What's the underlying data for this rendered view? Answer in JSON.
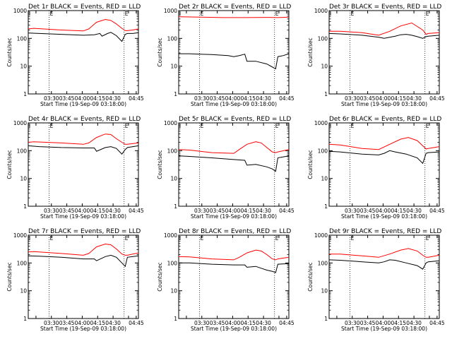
{
  "chart_data": [
    {
      "type": "line",
      "title": "Det 1r BLACK = Events, RED = LLD",
      "xlabel": "Start Time (19-Sep-09 03:18:00)",
      "ylabel": "Counts/sec",
      "xticklabels": [
        "03:30",
        "03:45",
        "04:00",
        "04:15",
        "04:30",
        "04:45"
      ],
      "yticklabels": [
        "1",
        "10",
        "100",
        "1000"
      ],
      "ylim": [
        1,
        1000
      ],
      "yscale": "log",
      "markers": [
        "E",
        "E"
      ],
      "series": [
        {
          "color": "#000000",
          "x": [
            0,
            0.1,
            0.3,
            0.5,
            0.6,
            0.65,
            0.67,
            0.72,
            0.75,
            0.8,
            0.85,
            0.88,
            0.9,
            0.95,
            1
          ],
          "y": [
            155,
            150,
            140,
            130,
            135,
            150,
            120,
            150,
            165,
            125,
            78,
            140,
            150,
            150,
            160
          ]
        },
        {
          "color": "#ff0000",
          "x": [
            0,
            0.05,
            0.3,
            0.5,
            0.55,
            0.62,
            0.7,
            0.75,
            0.8,
            0.85,
            0.88,
            0.9,
            0.95,
            1
          ],
          "y": [
            220,
            230,
            200,
            185,
            220,
            380,
            480,
            440,
            330,
            230,
            190,
            190,
            200,
            220
          ]
        }
      ]
    },
    {
      "type": "line",
      "title": "Det 2r BLACK = Events, RED = LLD",
      "xlabel": "Start Time (19-Sep-09 03:18:00)",
      "ylabel": "Counts/sec",
      "xticklabels": [
        "03:30",
        "03:45",
        "04:00",
        "04:15",
        "04:30",
        "04:45"
      ],
      "yticklabels": [
        "1",
        "10",
        "100",
        "1000"
      ],
      "ylim": [
        1,
        1000
      ],
      "yscale": "log",
      "markers": [
        "E",
        "E"
      ],
      "series": [
        {
          "color": "#000000",
          "x": [
            0,
            0.1,
            0.2,
            0.3,
            0.45,
            0.5,
            0.55,
            0.6,
            0.62,
            0.7,
            0.8,
            0.88,
            0.9,
            0.95,
            1
          ],
          "y": [
            28,
            28,
            27,
            26,
            24,
            22,
            24,
            27,
            15,
            15,
            12,
            8,
            22,
            24,
            28
          ]
        },
        {
          "color": "#ff0000",
          "x": [
            0,
            0.2,
            0.4,
            0.6,
            0.8,
            0.9,
            1
          ],
          "y": [
            600,
            580,
            560,
            560,
            570,
            560,
            580
          ]
        }
      ]
    },
    {
      "type": "line",
      "title": "Det 3r BLACK = Events, RED = LLD",
      "xlabel": "Start Time (19-Sep-09 03:18:00)",
      "ylabel": "Counts/sec",
      "xticklabels": [
        "03:30",
        "03:45",
        "04:00",
        "04:15",
        "04:30",
        "04:45"
      ],
      "yticklabels": [
        "1",
        "10",
        "100",
        "1000"
      ],
      "ylim": [
        1,
        1000
      ],
      "yscale": "log",
      "markers": [
        "E",
        "E"
      ],
      "series": [
        {
          "color": "#000000",
          "x": [
            0,
            0.1,
            0.3,
            0.45,
            0.5,
            0.55,
            0.6,
            0.65,
            0.7,
            0.75,
            0.8,
            0.85,
            0.88,
            0.9,
            1
          ],
          "y": [
            150,
            145,
            130,
            110,
            100,
            110,
            120,
            135,
            140,
            130,
            115,
            100,
            115,
            120,
            130
          ]
        },
        {
          "color": "#ff0000",
          "x": [
            0,
            0.1,
            0.3,
            0.45,
            0.55,
            0.65,
            0.75,
            0.85,
            0.88,
            0.9,
            1
          ],
          "y": [
            180,
            180,
            160,
            130,
            180,
            280,
            360,
            200,
            140,
            150,
            160
          ]
        }
      ]
    },
    {
      "type": "line",
      "title": "Det 4r BLACK = Events, RED = LLD",
      "xlabel": "Start Time (19-Sep-09 03:18:00)",
      "ylabel": "Counts/sec",
      "xticklabels": [
        "03:30",
        "03:45",
        "04:00",
        "04:15",
        "04:30",
        "04:45"
      ],
      "yticklabels": [
        "1",
        "10",
        "100",
        "1000"
      ],
      "ylim": [
        1,
        1000
      ],
      "yscale": "log",
      "markers": [
        "E",
        "E"
      ],
      "series": [
        {
          "color": "#000000",
          "x": [
            0,
            0.1,
            0.3,
            0.5,
            0.6,
            0.62,
            0.7,
            0.75,
            0.8,
            0.85,
            0.88,
            0.9,
            0.95,
            1
          ],
          "y": [
            150,
            140,
            130,
            125,
            125,
            95,
            130,
            140,
            120,
            75,
            110,
            130,
            140,
            150
          ]
        },
        {
          "color": "#ff0000",
          "x": [
            0,
            0.05,
            0.3,
            0.5,
            0.55,
            0.62,
            0.7,
            0.75,
            0.8,
            0.85,
            0.88,
            0.9,
            1
          ],
          "y": [
            200,
            210,
            190,
            170,
            190,
            300,
            400,
            380,
            270,
            200,
            170,
            170,
            190
          ]
        }
      ]
    },
    {
      "type": "line",
      "title": "Det 5r BLACK = Events, RED = LLD",
      "xlabel": "Start Time (19-Sep-09 03:18:00)",
      "ylabel": "Counts/sec",
      "xticklabels": [
        "03:30",
        "03:45",
        "04:00",
        "04:15",
        "04:30",
        "04:45"
      ],
      "yticklabels": [
        "1",
        "10",
        "100",
        "1000"
      ],
      "ylim": [
        1,
        1000
      ],
      "yscale": "log",
      "markers": [
        "E",
        "E"
      ],
      "series": [
        {
          "color": "#000000",
          "x": [
            0,
            0.1,
            0.3,
            0.5,
            0.6,
            0.62,
            0.7,
            0.8,
            0.85,
            0.88,
            0.9,
            0.95,
            1
          ],
          "y": [
            65,
            62,
            55,
            48,
            45,
            30,
            32,
            26,
            22,
            18,
            55,
            60,
            65
          ]
        },
        {
          "color": "#ff0000",
          "x": [
            0,
            0.1,
            0.3,
            0.5,
            0.55,
            0.62,
            0.7,
            0.75,
            0.8,
            0.85,
            0.88,
            0.9,
            1
          ],
          "y": [
            110,
            105,
            85,
            80,
            110,
            170,
            210,
            190,
            130,
            90,
            85,
            90,
            110
          ]
        }
      ]
    },
    {
      "type": "line",
      "title": "Det 6r BLACK = Events, RED = LLD",
      "xlabel": "Start Time (19-Sep-09 03:18:00)",
      "ylabel": "Counts/sec",
      "xticklabels": [
        "03:30",
        "03:45",
        "04:00",
        "04:15",
        "04:30",
        "04:45"
      ],
      "yticklabels": [
        "1",
        "10",
        "100",
        "1000"
      ],
      "ylim": [
        1,
        1000
      ],
      "yscale": "log",
      "markers": [
        "E",
        "E"
      ],
      "series": [
        {
          "color": "#000000",
          "x": [
            0,
            0.1,
            0.3,
            0.45,
            0.5,
            0.55,
            0.6,
            0.7,
            0.8,
            0.85,
            0.88,
            0.9,
            1
          ],
          "y": [
            95,
            90,
            75,
            70,
            80,
            100,
            90,
            75,
            55,
            35,
            80,
            85,
            90
          ]
        },
        {
          "color": "#ff0000",
          "x": [
            0,
            0.1,
            0.3,
            0.45,
            0.55,
            0.65,
            0.72,
            0.8,
            0.85,
            0.88,
            0.9,
            1
          ],
          "y": [
            170,
            160,
            120,
            110,
            170,
            260,
            300,
            230,
            150,
            115,
            120,
            140
          ]
        }
      ]
    },
    {
      "type": "line",
      "title": "Det 7r BLACK = Events, RED = LLD",
      "xlabel": "Start Time (19-Sep-09 03:18:00)",
      "ylabel": "Counts/sec",
      "xticklabels": [
        "03:30",
        "03:45",
        "04:00",
        "04:15",
        "04:30",
        "04:45"
      ],
      "yticklabels": [
        "1",
        "10",
        "100",
        "1000"
      ],
      "ylim": [
        1,
        1000
      ],
      "yscale": "log",
      "markers": [
        "E",
        "E"
      ],
      "series": [
        {
          "color": "#000000",
          "x": [
            0,
            0.1,
            0.3,
            0.5,
            0.6,
            0.62,
            0.7,
            0.75,
            0.8,
            0.85,
            0.88,
            0.9,
            0.95,
            1
          ],
          "y": [
            180,
            175,
            160,
            140,
            140,
            120,
            170,
            190,
            160,
            100,
            75,
            160,
            170,
            180
          ]
        },
        {
          "color": "#ff0000",
          "x": [
            0,
            0.05,
            0.3,
            0.5,
            0.55,
            0.62,
            0.7,
            0.75,
            0.8,
            0.85,
            0.88,
            0.9,
            1
          ],
          "y": [
            250,
            255,
            220,
            190,
            220,
            380,
            480,
            450,
            320,
            210,
            190,
            190,
            230
          ]
        }
      ]
    },
    {
      "type": "line",
      "title": "Det 8r BLACK = Events, RED = LLD",
      "xlabel": "Start Time (19-Sep-09 03:18:00)",
      "ylabel": "Counts/sec",
      "xticklabels": [
        "03:30",
        "03:45",
        "04:00",
        "04:15",
        "04:30",
        "04:45"
      ],
      "yticklabels": [
        "1",
        "10",
        "100",
        "1000"
      ],
      "ylim": [
        1,
        1000
      ],
      "yscale": "log",
      "markers": [
        "E",
        "E"
      ],
      "series": [
        {
          "color": "#000000",
          "x": [
            0,
            0.1,
            0.3,
            0.5,
            0.6,
            0.62,
            0.7,
            0.8,
            0.85,
            0.88,
            0.9,
            1
          ],
          "y": [
            100,
            100,
            90,
            85,
            85,
            70,
            75,
            55,
            50,
            45,
            90,
            95
          ]
        },
        {
          "color": "#ff0000",
          "x": [
            0,
            0.1,
            0.3,
            0.5,
            0.55,
            0.62,
            0.7,
            0.75,
            0.8,
            0.85,
            0.88,
            0.9,
            1
          ],
          "y": [
            170,
            165,
            140,
            130,
            160,
            230,
            290,
            270,
            200,
            140,
            130,
            140,
            160
          ]
        }
      ]
    },
    {
      "type": "line",
      "title": "Det 9r BLACK = Events, RED = LLD",
      "xlabel": "Start Time (19-Sep-09 03:18:00)",
      "ylabel": "Counts/sec",
      "xticklabels": [
        "03:30",
        "03:45",
        "04:00",
        "04:15",
        "04:30",
        "04:45"
      ],
      "yticklabels": [
        "1",
        "10",
        "100",
        "1000"
      ],
      "ylim": [
        1,
        1000
      ],
      "yscale": "log",
      "markers": [
        "E",
        "E"
      ],
      "series": [
        {
          "color": "#000000",
          "x": [
            0,
            0.1,
            0.3,
            0.45,
            0.5,
            0.55,
            0.6,
            0.7,
            0.8,
            0.85,
            0.88,
            0.9,
            1
          ],
          "y": [
            130,
            125,
            110,
            100,
            110,
            130,
            125,
            100,
            80,
            60,
            100,
            110,
            120
          ]
        },
        {
          "color": "#ff0000",
          "x": [
            0,
            0.1,
            0.3,
            0.45,
            0.55,
            0.65,
            0.72,
            0.8,
            0.85,
            0.88,
            0.9,
            1
          ],
          "y": [
            210,
            210,
            180,
            160,
            210,
            290,
            330,
            270,
            190,
            160,
            160,
            190
          ]
        }
      ]
    }
  ]
}
